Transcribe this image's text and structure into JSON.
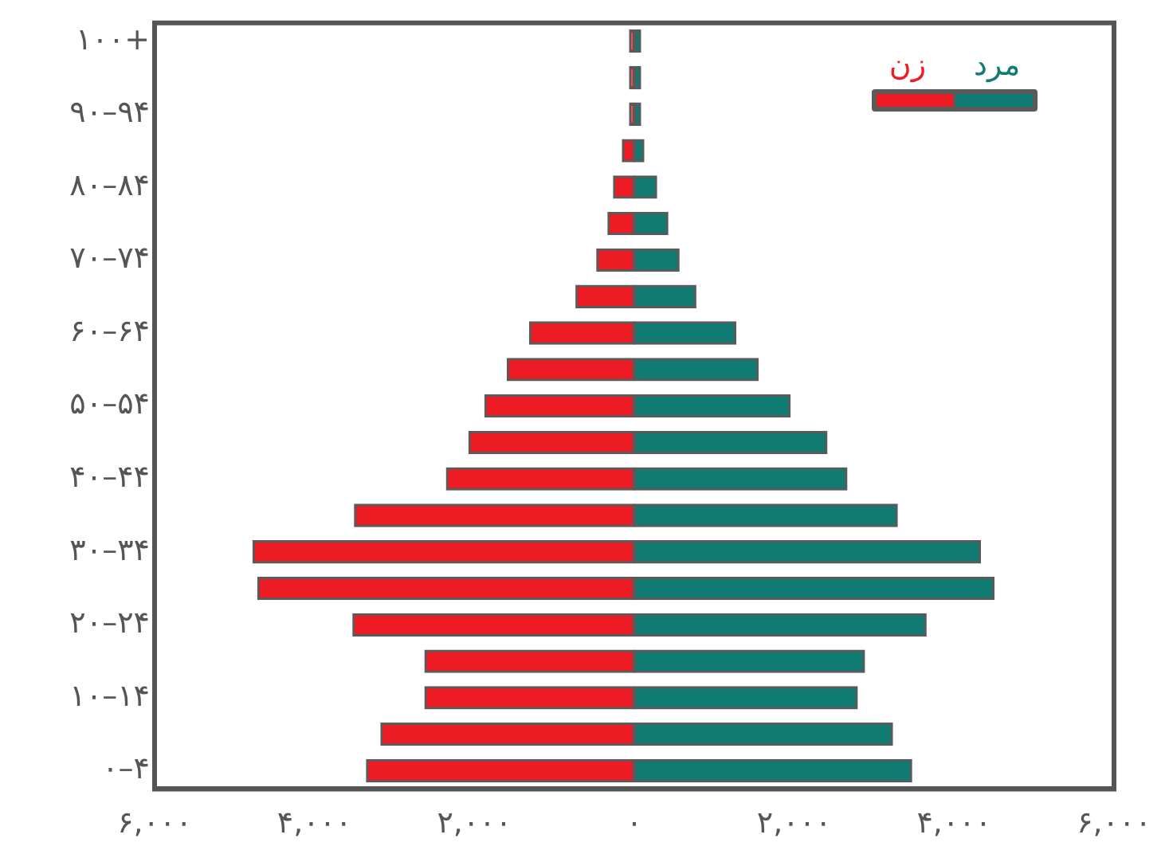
{
  "chart_data": {
    "type": "bar",
    "orientation": "horizontal",
    "stacked": true,
    "categories": [
      "۱۰۰+",
      null,
      "۹۰–۹۴",
      null,
      "۸۰–۸۴",
      null,
      "۷۰–۷۴",
      null,
      "۶۰–۶۴",
      null,
      "۵۰–۵۴",
      null,
      "۴۰–۴۴",
      null,
      "۳۰–۳۴",
      null,
      "۲۰–۲۴",
      null,
      "۱۰–۱۴",
      null,
      "۰–۴"
    ],
    "series": [
      {
        "name": "زن",
        "color": "#ed1c24",
        "values": [
          -60,
          -60,
          -60,
          -150,
          -260,
          -330,
          -470,
          -730,
          -1310,
          -1590,
          -1870,
          -2070,
          -2350,
          -3500,
          -4770,
          -4710,
          -3520,
          -2620,
          -2620,
          -3170,
          -3350
        ]
      },
      {
        "name": "مرد",
        "color": "#0f7b73",
        "values": [
          80,
          80,
          80,
          120,
          280,
          420,
          560,
          770,
          1270,
          1550,
          1950,
          2410,
          2660,
          3290,
          4330,
          4500,
          3650,
          2880,
          2790,
          3230,
          3470
        ]
      }
    ],
    "xlim": [
      -6000,
      6000
    ],
    "xticks": [
      {
        "value": -6000,
        "label": "۶,۰۰۰"
      },
      {
        "value": -4000,
        "label": "۴,۰۰۰"
      },
      {
        "value": -2000,
        "label": "۲,۰۰۰"
      },
      {
        "value": 0,
        "label": "۰"
      },
      {
        "value": 2000,
        "label": "۲,۰۰۰"
      },
      {
        "value": 4000,
        "label": "۴,۰۰۰"
      },
      {
        "value": 6000,
        "label": "۶,۰۰۰"
      }
    ],
    "grid": false,
    "legend": "top right"
  }
}
